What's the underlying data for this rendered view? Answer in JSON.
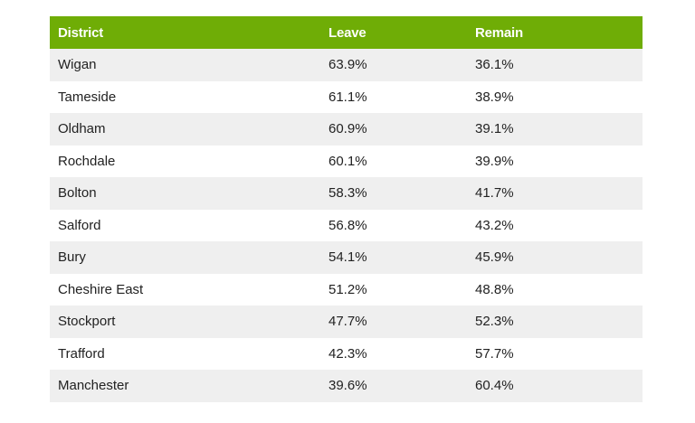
{
  "chart_data": {
    "type": "table",
    "columns": [
      "District",
      "Leave",
      "Remain"
    ],
    "rows": [
      [
        "Wigan",
        "63.9%",
        "36.1%"
      ],
      [
        "Tameside",
        "61.1%",
        "38.9%"
      ],
      [
        "Oldham",
        "60.9%",
        "39.1%"
      ],
      [
        "Rochdale",
        "60.1%",
        "39.9%"
      ],
      [
        "Bolton",
        "58.3%",
        "41.7%"
      ],
      [
        "Salford",
        "56.8%",
        "43.2%"
      ],
      [
        "Bury",
        "54.1%",
        "45.9%"
      ],
      [
        "Cheshire East",
        "51.2%",
        "48.8%"
      ],
      [
        "Stockport",
        "47.7%",
        "52.3%"
      ],
      [
        "Trafford",
        "42.3%",
        "57.7%"
      ],
      [
        "Manchester",
        "39.6%",
        "60.4%"
      ]
    ]
  },
  "colors": {
    "header_bg": "#6fad06",
    "header_text": "#ffffff",
    "row_alt_bg": "#efefef",
    "row_bg": "#ffffff",
    "cell_text": "#222222"
  }
}
